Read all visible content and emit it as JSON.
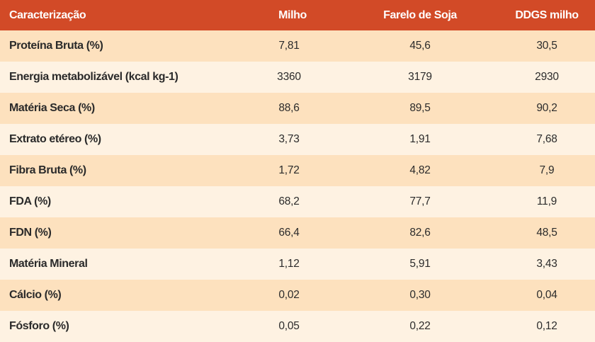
{
  "table": {
    "headers": [
      "Caracterização",
      "Milho",
      "Farelo de Soja",
      "DDGS milho"
    ],
    "rows": [
      [
        "Proteína Bruta (%)",
        "7,81",
        "45,6",
        "30,5"
      ],
      [
        "Energia metabolizável (kcal kg-1)",
        "3360",
        "3179",
        "2930"
      ],
      [
        "Matéria Seca (%)",
        "88,6",
        "89,5",
        "90,2"
      ],
      [
        "Extrato etéreo (%)",
        "3,73",
        "1,91",
        "7,68"
      ],
      [
        "Fibra Bruta (%)",
        "1,72",
        "4,82",
        "7,9"
      ],
      [
        "FDA (%)",
        "68,2",
        "77,7",
        "11,9"
      ],
      [
        "FDN (%)",
        "66,4",
        "82,6",
        "48,5"
      ],
      [
        "Matéria Mineral",
        "1,12",
        "5,91",
        "3,43"
      ],
      [
        "Cálcio (%)",
        "0,02",
        "0,30",
        "0,04"
      ],
      [
        "Fósforo (%)",
        "0,05",
        "0,22",
        "0,12"
      ]
    ]
  },
  "colors": {
    "header_bg": "#d24a27",
    "row_odd_bg": "#fde1be",
    "row_even_bg": "#fef2e2"
  }
}
